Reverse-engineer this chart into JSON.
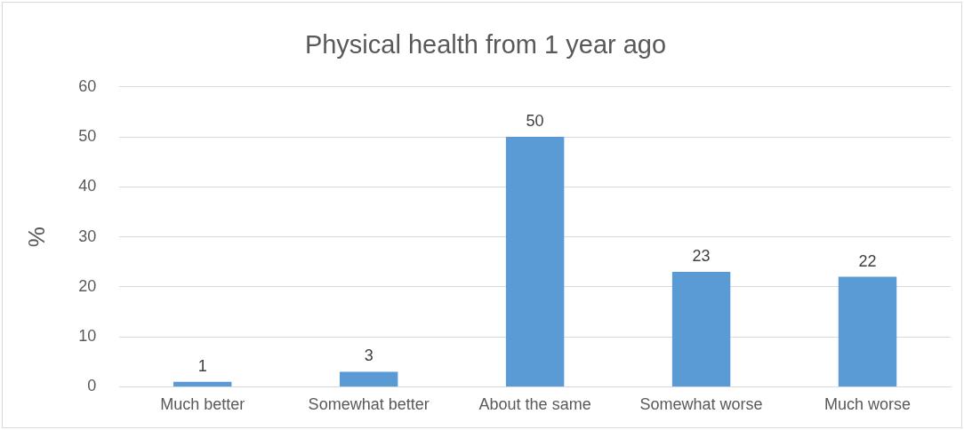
{
  "chart_data": {
    "type": "bar",
    "title": "Physical health from 1 year ago",
    "ylabel": "%",
    "categories": [
      "Much better",
      "Somewhat better",
      "About the same",
      "Somewhat worse",
      "Much worse"
    ],
    "values": [
      1,
      3,
      50,
      23,
      22
    ],
    "color": "#5b9bd5",
    "ylim": [
      0,
      60
    ],
    "yticks": [
      0,
      10,
      20,
      30,
      40,
      50,
      60
    ],
    "grid": "y",
    "data_labels": true
  }
}
